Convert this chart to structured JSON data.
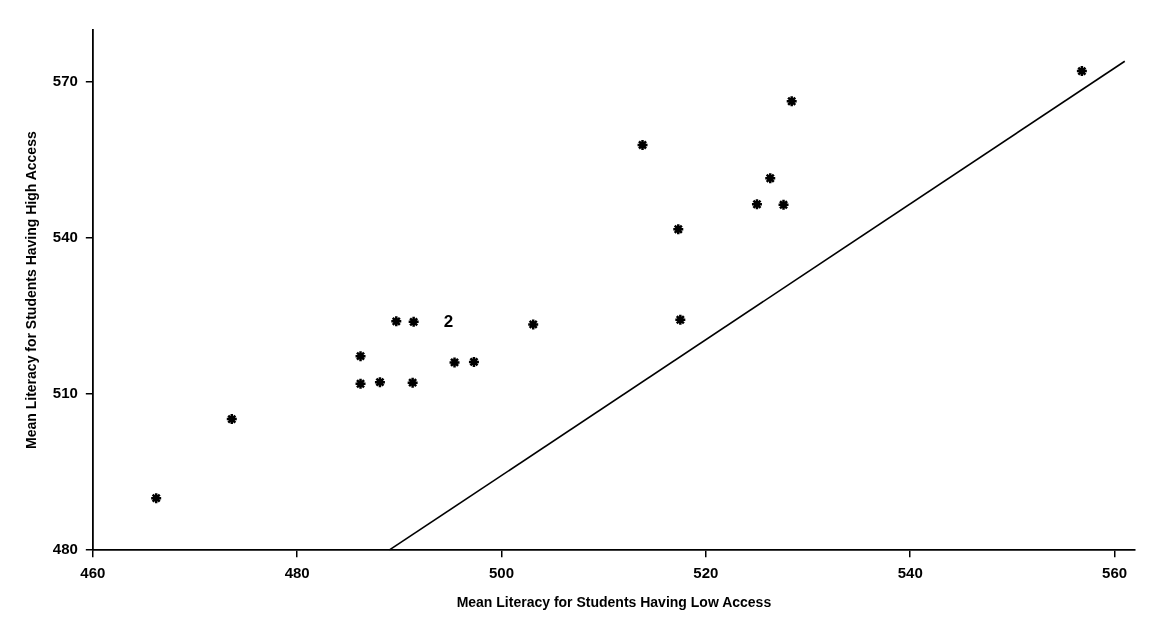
{
  "chart_data": {
    "type": "scatter",
    "xlabel": "Mean Literacy for Students Having Low Access",
    "ylabel": "Mean Literacy for Students Having High Access",
    "xlim": [
      460,
      562
    ],
    "ylim": [
      480,
      580
    ],
    "xticks": [
      460,
      480,
      500,
      520,
      540,
      560
    ],
    "yticks": [
      480,
      510,
      540,
      570
    ],
    "grid": false,
    "legend": false,
    "marker": "cross",
    "x": [
      466.2,
      473.6,
      486.2,
      486.2,
      488.1,
      491.3,
      489.7,
      491.4,
      495.4,
      497.3,
      503.1,
      517.5,
      517.3,
      513.8,
      525.0,
      527.6,
      526.3,
      528.4,
      556.8
    ],
    "series": [
      {
        "color": "#000000",
        "values": [
          490.0,
          505.2,
          517.3,
          512.0,
          512.3,
          512.2,
          524.0,
          523.9,
          516.1,
          516.2,
          523.4,
          524.3,
          541.7,
          557.9,
          546.5,
          546.4,
          551.5,
          566.3,
          572.1
        ]
      },
      {
        "type": "line",
        "color": "#000000",
        "x": [
          489,
          561
        ],
        "values": [
          480,
          574
        ],
        "marker": "none",
        "line_style": "solid"
      }
    ],
    "annotations": [
      {
        "text": "2",
        "x": 491.4,
        "y": 523.9
      }
    ]
  }
}
